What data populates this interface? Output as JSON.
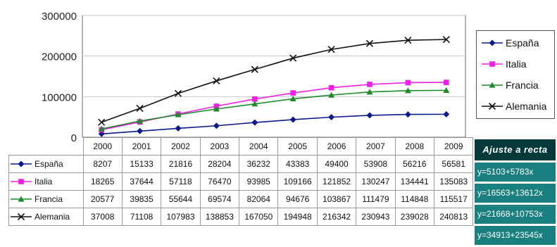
{
  "chart_data": {
    "type": "line",
    "categories": [
      "2000",
      "2001",
      "2002",
      "2003",
      "2004",
      "2005",
      "2006",
      "2007",
      "2008",
      "2009"
    ],
    "ylim": [
      0,
      300000
    ],
    "yticks": [
      "0",
      "100000",
      "200000",
      "300000"
    ],
    "yticks_values": [
      0,
      100000,
      200000,
      300000
    ],
    "grid": true,
    "legend_position": "right",
    "series": [
      {
        "name": "España",
        "color": "#0b1a8c",
        "marker": "diamond",
        "values": [
          8207,
          15133,
          21816,
          28204,
          36232,
          43383,
          49400,
          53908,
          56216,
          56581
        ]
      },
      {
        "name": "Italia",
        "color": "#f01ee6",
        "marker": "square",
        "values": [
          18265,
          37644,
          57118,
          76470,
          93985,
          109166,
          121852,
          130247,
          134441,
          135083
        ]
      },
      {
        "name": "Francia",
        "color": "#1d8b2a",
        "marker": "triangle",
        "values": [
          20577,
          39835,
          55644,
          69574,
          82064,
          94676,
          103867,
          111479,
          114848,
          115517
        ]
      },
      {
        "name": "Alemania",
        "color": "#111111",
        "marker": "x",
        "values": [
          37008,
          71108,
          107983,
          138853,
          167050,
          194948,
          216342,
          230943,
          239028,
          240813
        ]
      }
    ]
  },
  "fit_panel": {
    "title": "Ajuste a recta",
    "rows": [
      "y=5103+5783x",
      "y=16563+13612x",
      "y=21668+10753x",
      "y=34913+23545x"
    ]
  }
}
